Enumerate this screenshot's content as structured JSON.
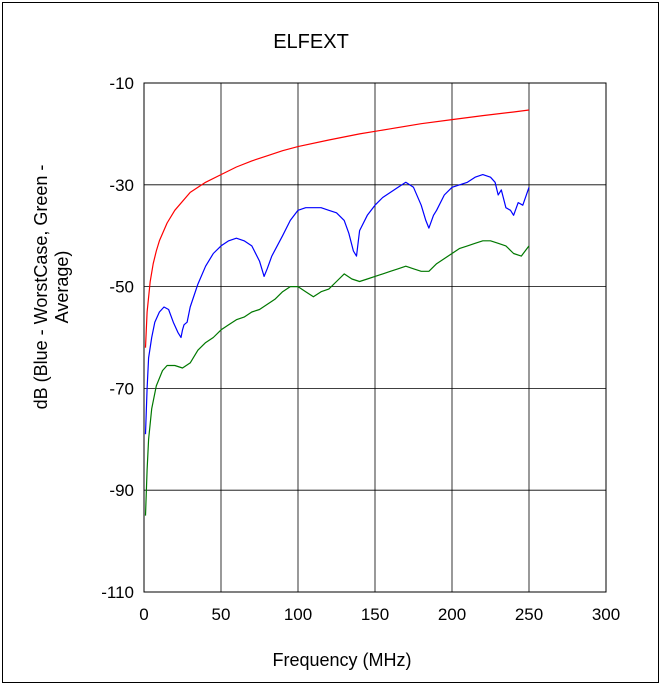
{
  "chart_data": {
    "type": "line",
    "title": "ELFEXT",
    "xlabel": "Frequency (MHz)",
    "ylabel_lines": [
      "dB (Blue - WorstCase, Green -",
      "Average)"
    ],
    "xlim": [
      0,
      300
    ],
    "ylim": [
      -110,
      -10
    ],
    "xticks": [
      0,
      50,
      100,
      150,
      200,
      250,
      300
    ],
    "yticks": [
      -110,
      -90,
      -70,
      -50,
      -30,
      -10
    ],
    "grid": true,
    "legend": "none",
    "series": [
      {
        "color": "#ff0000",
        "x": [
          1,
          2,
          4,
          6,
          8,
          10,
          15,
          20,
          30,
          40,
          50,
          60,
          70,
          80,
          90,
          100,
          120,
          140,
          160,
          180,
          200,
          220,
          240,
          250
        ],
        "y": [
          -62,
          -55,
          -49,
          -45.5,
          -43,
          -41,
          -37.5,
          -35,
          -31.5,
          -29.5,
          -28,
          -26.5,
          -25.3,
          -24.3,
          -23.3,
          -22.5,
          -21.2,
          -20,
          -19,
          -18,
          -17.2,
          -16.4,
          -15.7,
          -15.3
        ]
      },
      {
        "color": "#0000ff",
        "x": [
          1,
          2,
          3,
          5,
          7,
          10,
          13,
          16,
          19,
          22,
          24,
          25,
          26,
          28,
          30,
          35,
          40,
          45,
          50,
          55,
          60,
          65,
          70,
          75,
          78,
          80,
          83,
          90,
          95,
          100,
          105,
          110,
          115,
          120,
          125,
          130,
          133,
          136,
          138,
          140,
          145,
          150,
          155,
          160,
          165,
          170,
          175,
          180,
          183,
          185,
          188,
          190,
          195,
          200,
          205,
          210,
          215,
          220,
          225,
          228,
          230,
          232,
          235,
          238,
          240,
          243,
          246,
          250
        ],
        "y": [
          -79,
          -70,
          -64,
          -60,
          -57,
          -55,
          -54,
          -54.5,
          -57,
          -59,
          -60,
          -58.5,
          -57.5,
          -57,
          -54,
          -49.5,
          -46,
          -43.5,
          -42,
          -41,
          -40.5,
          -41,
          -42,
          -45,
          -48,
          -46.5,
          -44,
          -40,
          -37,
          -35,
          -34.5,
          -34.5,
          -34.5,
          -35,
          -35.5,
          -37,
          -39.5,
          -43,
          -44,
          -39,
          -36,
          -34,
          -32.5,
          -31.5,
          -30.5,
          -29.5,
          -30.5,
          -34,
          -37,
          -38.5,
          -36,
          -35,
          -32,
          -30.5,
          -30,
          -29.5,
          -28.5,
          -28,
          -28.5,
          -29.5,
          -32,
          -31,
          -34.5,
          -35,
          -36,
          -33.5,
          -34,
          -30.5
        ]
      },
      {
        "color": "#007800",
        "x": [
          1,
          2,
          3,
          5,
          8,
          12,
          15,
          20,
          25,
          30,
          35,
          40,
          45,
          50,
          55,
          60,
          65,
          70,
          75,
          80,
          85,
          90,
          95,
          100,
          105,
          110,
          115,
          120,
          125,
          130,
          135,
          140,
          145,
          150,
          155,
          160,
          165,
          170,
          175,
          180,
          185,
          190,
          195,
          200,
          205,
          210,
          215,
          220,
          225,
          230,
          235,
          240,
          245,
          250
        ],
        "y": [
          -95,
          -86,
          -80,
          -74,
          -69.5,
          -66.5,
          -65.5,
          -65.5,
          -66,
          -65,
          -62.5,
          -61,
          -60,
          -58.5,
          -57.5,
          -56.5,
          -56,
          -55,
          -54.5,
          -53.5,
          -52.5,
          -51,
          -50,
          -50,
          -51,
          -52,
          -51,
          -50.5,
          -49,
          -47.5,
          -48.5,
          -49,
          -48.5,
          -48,
          -47.5,
          -47,
          -46.5,
          -46,
          -46.5,
          -47,
          -47,
          -45.5,
          -44.5,
          -43.5,
          -42.5,
          -42,
          -41.5,
          -41,
          -41,
          -41.5,
          -42,
          -43.5,
          -44,
          -42
        ]
      }
    ]
  }
}
